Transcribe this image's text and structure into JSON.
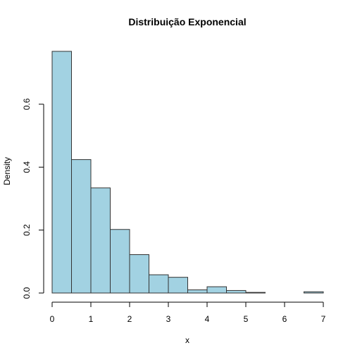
{
  "chart_data": {
    "type": "bar",
    "title": "Distribuição Exponencial",
    "xlabel": "x",
    "ylabel": "Density",
    "bar_color": "#a2d2e2",
    "xlim": [
      0,
      7
    ],
    "ylim": [
      0,
      0.77
    ],
    "xticks": [
      "0",
      "1",
      "2",
      "3",
      "4",
      "5",
      "6",
      "7"
    ],
    "yticks": [
      "0.0",
      "0.2",
      "0.4",
      "0.6"
    ],
    "bins": [
      {
        "start": 0.0,
        "end": 0.5,
        "density": 0.768
      },
      {
        "start": 0.5,
        "end": 1.0,
        "density": 0.424
      },
      {
        "start": 1.0,
        "end": 1.5,
        "density": 0.334
      },
      {
        "start": 1.5,
        "end": 2.0,
        "density": 0.202
      },
      {
        "start": 2.0,
        "end": 2.5,
        "density": 0.122
      },
      {
        "start": 2.5,
        "end": 3.0,
        "density": 0.058
      },
      {
        "start": 3.0,
        "end": 3.5,
        "density": 0.05
      },
      {
        "start": 3.5,
        "end": 4.0,
        "density": 0.01
      },
      {
        "start": 4.0,
        "end": 4.5,
        "density": 0.02
      },
      {
        "start": 4.5,
        "end": 5.0,
        "density": 0.008
      },
      {
        "start": 5.0,
        "end": 5.5,
        "density": 0.002
      },
      {
        "start": 5.5,
        "end": 6.0,
        "density": 0.0
      },
      {
        "start": 6.0,
        "end": 6.5,
        "density": 0.0
      },
      {
        "start": 6.5,
        "end": 7.0,
        "density": 0.004
      }
    ]
  }
}
